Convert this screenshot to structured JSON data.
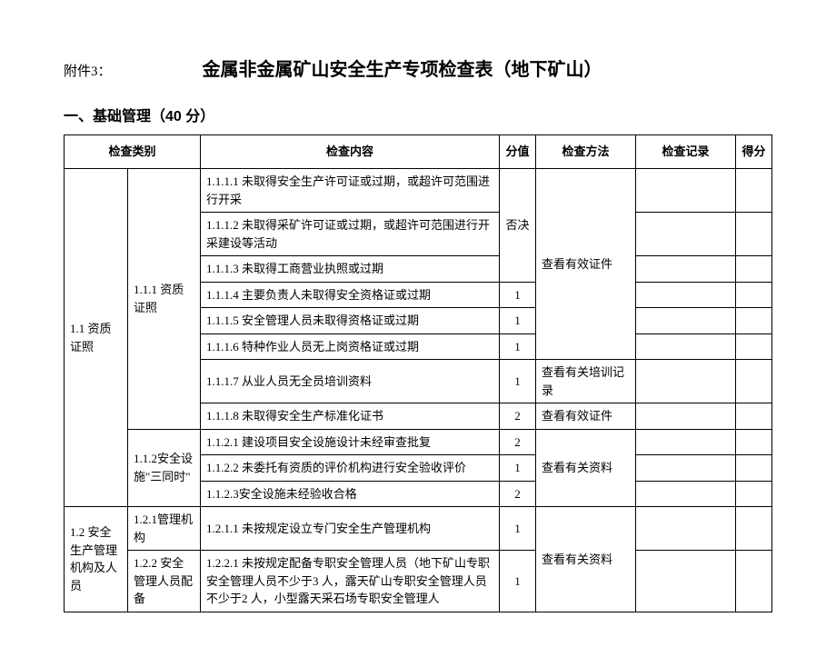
{
  "header": {
    "attachment": "附件3：",
    "title": "金属非金属矿山安全生产专项检查表（地下矿山）"
  },
  "section": {
    "title": "一、基础管理（40 分）"
  },
  "table": {
    "headers": {
      "category": "检查类别",
      "content": "检查内容",
      "score": "分值",
      "method": "检查方法",
      "record": "检查记录",
      "get": "得分"
    },
    "cat1_1": "1.1 资质证照",
    "cat1_1_1": "1.1.1 资质证照",
    "r1_1_1_1": "1.1.1.1 未取得安全生产许可证或过期，或超许可范围进行开采",
    "r1_1_1_2": "1.1.1.2 未取得采矿许可证或过期，或超许可范围进行开采建设等活动",
    "r1_1_1_3": "1.1.1.3 未取得工商营业执照或过期",
    "r1_1_1_4": "1.1.1.4 主要负责人未取得安全资格证或过期",
    "r1_1_1_5": "1.1.1.5 安全管理人员未取得资格证或过期",
    "r1_1_1_6": "1.1.1.6 特种作业人员无上岗资格证或过期",
    "r1_1_1_7": "1.1.1.7 从业人员无全员培训资料",
    "r1_1_1_8": "1.1.1.8 未取得安全生产标准化证书",
    "cat1_1_2": "1.1.2安全设施\"三同时\"",
    "r1_1_2_1": "1.1.2.1 建设项目安全设施设计未经审查批复",
    "r1_1_2_2": "1.1.2.2 未委托有资质的评价机构进行安全验收评价",
    "r1_1_2_3": "1.1.2.3安全设施未经验收合格",
    "cat1_2": "1.2 安全生产管理机构及人员",
    "cat1_2_1": "1.2.1管理机构",
    "r1_2_1_1": "1.2.1.1 未按规定设立专门安全生产管理机构",
    "cat1_2_2": "1.2.2 安全管理人员配备",
    "r1_2_2_1": "1.2.2.1 未按规定配备专职安全管理人员（地下矿山专职安全管理人员不少于3 人，露天矿山专职安全管理人员不少于2 人，小型露天采石场专职安全管理人",
    "score_veto": "否决",
    "score_1": "1",
    "score_2": "2",
    "method_cert": "查看有效证件",
    "method_train": "查看有关培训记录",
    "method_cert2": "查看有效证件",
    "method_doc": "查看有关资料",
    "method_doc2": "查看有关资料"
  }
}
